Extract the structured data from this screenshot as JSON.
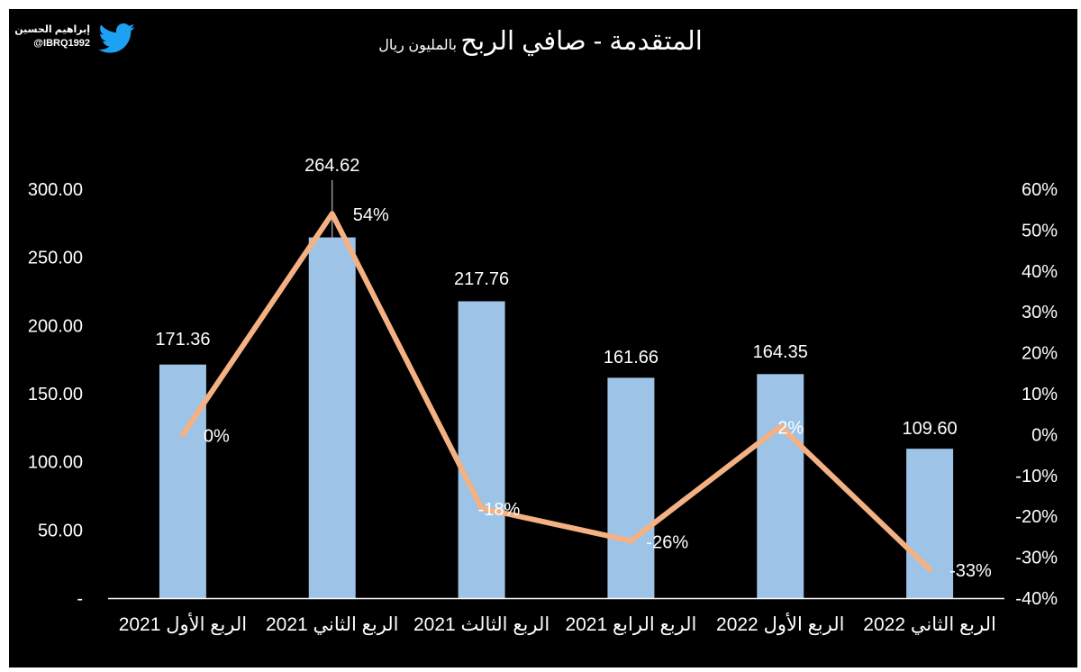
{
  "brand": {
    "name": "إبراهيم الحسين",
    "handle": "@IBRQ1992",
    "icon": "twitter-bird-icon",
    "icon_color": "#1da1f2"
  },
  "colors": {
    "background": "#000000",
    "bar": "#9dc3e6",
    "line": "#f4b183",
    "text": "#ffffff"
  },
  "chart_data": {
    "type": "bar",
    "title": "المتقدمة - صافي الربح",
    "subtitle": "بالمليون ريال",
    "categories": [
      "الربع الأول 2021",
      "الربع الثاني 2021",
      "الربع الثالث 2021",
      "الربع الرابع 2021",
      "الربع الأول 2022",
      "الربع الثاني 2022"
    ],
    "series": [
      {
        "type": "bar",
        "axis": "left",
        "values": [
          171.36,
          264.62,
          217.76,
          161.66,
          164.35,
          109.6
        ],
        "labels": [
          "171.36",
          "264.62",
          "217.76",
          "161.66",
          "164.35",
          "109.60"
        ]
      },
      {
        "type": "line",
        "axis": "right",
        "values": [
          0,
          54,
          -18,
          -26,
          2,
          -33
        ],
        "labels": [
          "0%",
          "54%",
          "-18%",
          "-26%",
          "2%",
          "-33%"
        ]
      }
    ],
    "y_left": {
      "ylim": [
        0,
        300
      ],
      "ticks": [
        0,
        50,
        100,
        150,
        200,
        250,
        300
      ],
      "tick_labels": [
        "-",
        "50.00",
        "100.00",
        "150.00",
        "200.00",
        "250.00",
        "300.00"
      ]
    },
    "y_right": {
      "ylim": [
        -40,
        60
      ],
      "ticks": [
        -40,
        -30,
        -20,
        -10,
        0,
        10,
        20,
        30,
        40,
        50,
        60
      ],
      "tick_labels": [
        "-40%",
        "-30%",
        "-20%",
        "-10%",
        "0%",
        "10%",
        "20%",
        "30%",
        "40%",
        "50%",
        "60%"
      ]
    },
    "grid": false,
    "legend": "none"
  }
}
